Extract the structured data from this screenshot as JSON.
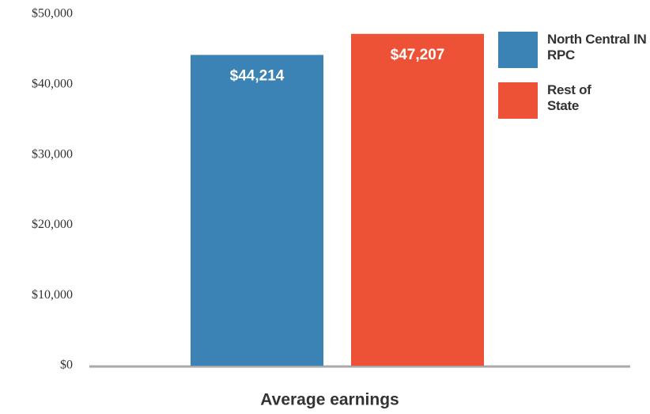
{
  "chart_data": {
    "type": "bar",
    "categories": [
      "Average earnings"
    ],
    "series": [
      {
        "name": "North Central IN RPC",
        "color": "#3b82b5",
        "values": [
          44214
        ],
        "value_labels": [
          "$44,214"
        ]
      },
      {
        "name": "Rest of State",
        "color": "#ee5236",
        "values": [
          47207
        ],
        "value_labels": [
          "$47,207"
        ]
      }
    ],
    "ylim": [
      0,
      50000
    ],
    "yticks": [
      {
        "value": 0,
        "label": "$0"
      },
      {
        "value": 10000,
        "label": "$10,000"
      },
      {
        "value": 20000,
        "label": "$20,000"
      },
      {
        "value": 30000,
        "label": "$30,000"
      },
      {
        "value": 40000,
        "label": "$40,000"
      },
      {
        "value": 50000,
        "label": "$50,000"
      }
    ],
    "legend": "upper right",
    "grid": false
  }
}
